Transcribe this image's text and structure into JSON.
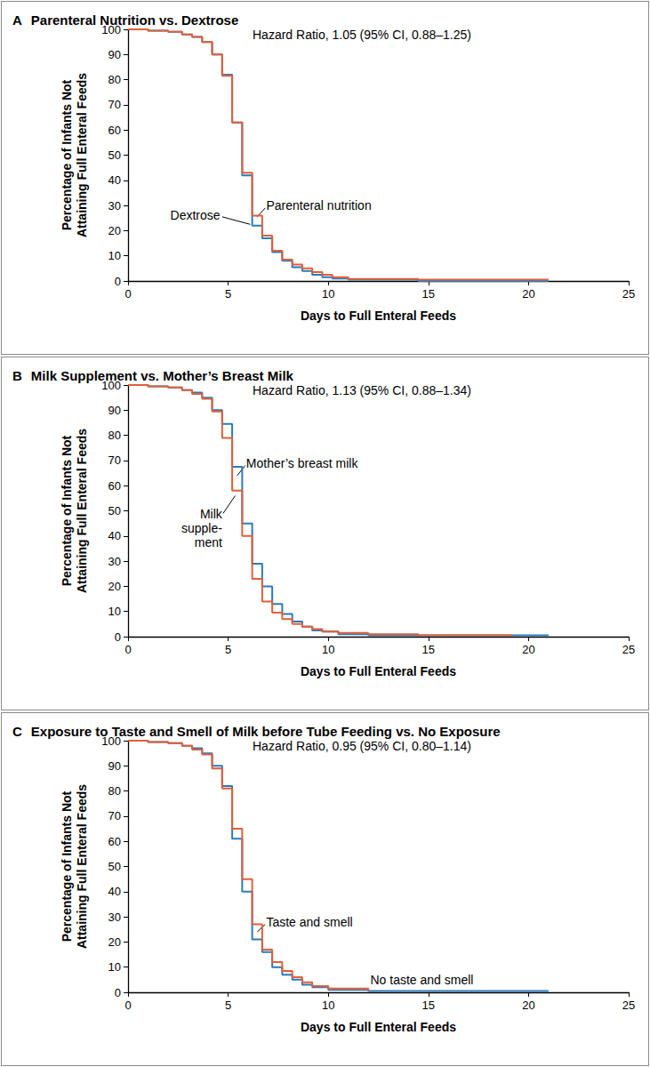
{
  "chart_data": [
    {
      "type": "line",
      "panel": "A",
      "title": "Parenteral Nutrition vs. Dextrose",
      "annotation": "Hazard Ratio, 1.05 (95% CI, 0.88–1.25)",
      "x_label": "Days to Full Enteral Feeds",
      "y_label": "Percentage of Infants Not\nAttaining Full Enteral Feeds",
      "xlim": [
        0,
        25
      ],
      "xticks": [
        0,
        5,
        10,
        15,
        20,
        25
      ],
      "ylim": [
        0,
        100
      ],
      "yticks": [
        0,
        10,
        20,
        30,
        40,
        50,
        60,
        70,
        80,
        90,
        100
      ],
      "grid": false,
      "line_style": "step",
      "series": [
        {
          "name": "Dextrose",
          "color": "#2b7bba",
          "x": [
            0,
            1,
            2,
            2.7,
            3.2,
            3.7,
            4.2,
            4.7,
            5.2,
            5.7,
            6.2,
            6.7,
            7.2,
            7.7,
            8.2,
            8.7,
            9.2,
            9.7,
            10.2,
            11,
            14.5,
            21
          ],
          "values": [
            100,
            99.5,
            99,
            98,
            97,
            95,
            90,
            82,
            63,
            42,
            22,
            17,
            11.5,
            8,
            5.5,
            4,
            2.5,
            1.5,
            1,
            0.5,
            0,
            0
          ]
        },
        {
          "name": "Parenteral nutrition",
          "color": "#e0603a",
          "x": [
            0,
            1,
            2,
            2.7,
            3.2,
            3.7,
            4.2,
            4.7,
            5.2,
            5.7,
            6.2,
            6.7,
            7.2,
            7.7,
            8.2,
            8.7,
            9.2,
            9.7,
            10.2,
            11,
            14.5,
            21
          ],
          "values": [
            100,
            99.5,
            99,
            98,
            97,
            95,
            90,
            81.5,
            63,
            43,
            26,
            18,
            12,
            8.5,
            6.5,
            5,
            3.5,
            2.5,
            1.5,
            0.8,
            0.5,
            0.5
          ]
        }
      ]
    },
    {
      "type": "line",
      "panel": "B",
      "title": "Milk Supplement vs. Mother’s Breast Milk",
      "annotation": "Hazard Ratio, 1.13 (95% CI, 0.88–1.34)",
      "x_label": "Days to Full Enteral Feeds",
      "y_label": "Percentage of Infants Not\nAttaining Full Enteral Feeds",
      "xlim": [
        0,
        25
      ],
      "xticks": [
        0,
        5,
        10,
        15,
        20,
        25
      ],
      "ylim": [
        0,
        100
      ],
      "yticks": [
        0,
        10,
        20,
        30,
        40,
        50,
        60,
        70,
        80,
        90,
        100
      ],
      "grid": false,
      "line_style": "step",
      "series": [
        {
          "name": "Mother’s breast milk",
          "color": "#2b7bba",
          "x": [
            0,
            1,
            2,
            2.7,
            3.2,
            3.7,
            4.2,
            4.7,
            5.2,
            5.7,
            6.2,
            6.7,
            7.2,
            7.7,
            8.2,
            8.7,
            9.2,
            9.7,
            10.5,
            12,
            21
          ],
          "values": [
            100,
            99.5,
            99,
            98,
            97,
            95,
            90,
            84.5,
            67.5,
            45,
            29,
            20,
            13,
            9,
            6,
            4,
            2.5,
            2,
            1,
            0.5,
            0.5
          ]
        },
        {
          "name": "Milk\nsupple-\nment",
          "color": "#e0603a",
          "x": [
            0,
            1,
            2,
            2.7,
            3.2,
            3.7,
            4.2,
            4.7,
            5.2,
            5.7,
            6.2,
            6.7,
            7.2,
            7.7,
            8.2,
            8.7,
            9.2,
            9.7,
            10.5,
            12,
            14.5,
            19.2
          ],
          "values": [
            100,
            99.5,
            99,
            98,
            96.5,
            94.5,
            89.5,
            79,
            58,
            40,
            23,
            14,
            9.5,
            7,
            5,
            4,
            3,
            2,
            1.5,
            1,
            0.5,
            0.5
          ]
        }
      ]
    },
    {
      "type": "line",
      "panel": "C",
      "title": "Exposure to Taste and Smell of Milk before Tube Feeding vs. No Exposure",
      "annotation": "Hazard Ratio, 0.95 (95% CI, 0.80–1.14)",
      "x_label": "Days to Full Enteral Feeds",
      "y_label": "Percentage of Infants Not\nAttaining Full Enteral Feeds",
      "xlim": [
        0,
        25
      ],
      "xticks": [
        0,
        5,
        10,
        15,
        20,
        25
      ],
      "ylim": [
        0,
        100
      ],
      "yticks": [
        0,
        10,
        20,
        30,
        40,
        50,
        60,
        70,
        80,
        90,
        100
      ],
      "grid": false,
      "line_style": "step",
      "series": [
        {
          "name": "No taste and smell",
          "color": "#2b7bba",
          "x": [
            0,
            1,
            2,
            2.7,
            3.2,
            3.7,
            4.2,
            4.7,
            5.2,
            5.7,
            6.2,
            6.7,
            7.2,
            7.7,
            8.2,
            8.7,
            9.2,
            10,
            12,
            21
          ],
          "values": [
            100,
            99.5,
            99,
            98,
            97,
            95,
            90,
            82,
            61,
            40,
            21,
            16,
            10,
            7,
            5,
            3,
            2,
            1,
            0.5,
            0.5
          ]
        },
        {
          "name": "Taste and smell",
          "color": "#e0603a",
          "x": [
            0,
            1,
            2,
            2.7,
            3.2,
            3.7,
            4.2,
            4.7,
            5.2,
            5.7,
            6.2,
            6.7,
            7.2,
            7.7,
            8.2,
            8.7,
            9.2,
            10,
            12
          ],
          "values": [
            100,
            99.5,
            99,
            98,
            96.5,
            94.5,
            89,
            81,
            65,
            45,
            27,
            17,
            12,
            8.5,
            6,
            4,
            2.5,
            1.5,
            0.5
          ]
        }
      ]
    }
  ]
}
